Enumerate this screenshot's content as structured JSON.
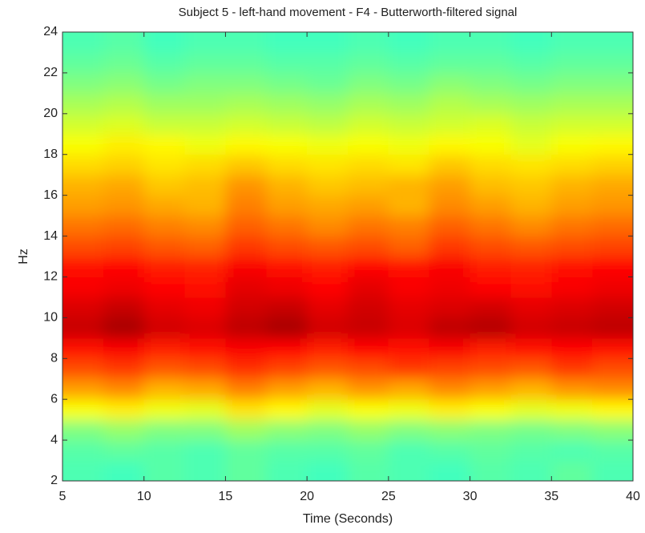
{
  "chart_data": {
    "type": "heatmap",
    "title": "Subject 5 - left-hand movement - F4 - Butterworth-filtered signal",
    "x_label": "Time (Seconds)",
    "y_label": "Hz",
    "colormap": "jet",
    "x": [
      6.25,
      8.75,
      11.25,
      13.75,
      16.25,
      18.75,
      21.25,
      23.75,
      26.25,
      28.75,
      31.25,
      33.75,
      36.25,
      38.75
    ],
    "y": [
      2.5,
      3.5,
      4.5,
      5.5,
      6.5,
      7.5,
      8.5,
      9.5,
      10.5,
      11.5,
      12.5,
      13.5,
      14.5,
      15.5,
      16.5,
      17.5,
      18.5,
      19.5,
      20.5,
      21.5,
      22.5,
      23.5
    ],
    "z": [
      [
        0.45,
        0.44,
        0.46,
        0.45,
        0.47,
        0.45,
        0.44,
        0.46,
        0.45,
        0.44,
        0.46,
        0.45,
        0.47,
        0.45
      ],
      [
        0.46,
        0.47,
        0.46,
        0.45,
        0.47,
        0.46,
        0.46,
        0.47,
        0.45,
        0.46,
        0.47,
        0.46,
        0.45,
        0.46
      ],
      [
        0.5,
        0.52,
        0.5,
        0.5,
        0.53,
        0.51,
        0.5,
        0.52,
        0.5,
        0.51,
        0.5,
        0.49,
        0.5,
        0.51
      ],
      [
        0.62,
        0.64,
        0.61,
        0.6,
        0.65,
        0.63,
        0.6,
        0.62,
        0.61,
        0.64,
        0.62,
        0.6,
        0.61,
        0.63
      ],
      [
        0.72,
        0.74,
        0.7,
        0.71,
        0.75,
        0.72,
        0.7,
        0.73,
        0.71,
        0.74,
        0.72,
        0.7,
        0.73,
        0.74
      ],
      [
        0.8,
        0.82,
        0.79,
        0.8,
        0.83,
        0.81,
        0.79,
        0.8,
        0.82,
        0.81,
        0.8,
        0.79,
        0.82,
        0.8
      ],
      [
        0.86,
        0.88,
        0.85,
        0.86,
        0.88,
        0.87,
        0.85,
        0.87,
        0.86,
        0.88,
        0.85,
        0.86,
        0.87,
        0.86
      ],
      [
        0.93,
        0.96,
        0.92,
        0.91,
        0.94,
        0.96,
        0.92,
        0.93,
        0.91,
        0.94,
        0.95,
        0.92,
        0.93,
        0.94
      ],
      [
        0.91,
        0.93,
        0.9,
        0.89,
        0.92,
        0.93,
        0.9,
        0.92,
        0.9,
        0.91,
        0.92,
        0.9,
        0.91,
        0.92
      ],
      [
        0.88,
        0.89,
        0.87,
        0.86,
        0.9,
        0.89,
        0.87,
        0.9,
        0.88,
        0.89,
        0.87,
        0.86,
        0.88,
        0.89
      ],
      [
        0.86,
        0.87,
        0.85,
        0.84,
        0.88,
        0.86,
        0.85,
        0.87,
        0.86,
        0.88,
        0.85,
        0.84,
        0.86,
        0.87
      ],
      [
        0.8,
        0.81,
        0.79,
        0.78,
        0.82,
        0.8,
        0.79,
        0.8,
        0.78,
        0.82,
        0.8,
        0.79,
        0.8,
        0.81
      ],
      [
        0.76,
        0.77,
        0.75,
        0.74,
        0.78,
        0.76,
        0.74,
        0.76,
        0.75,
        0.78,
        0.76,
        0.74,
        0.76,
        0.77
      ],
      [
        0.72,
        0.73,
        0.71,
        0.7,
        0.75,
        0.72,
        0.71,
        0.72,
        0.7,
        0.74,
        0.72,
        0.7,
        0.72,
        0.73
      ],
      [
        0.7,
        0.71,
        0.68,
        0.69,
        0.73,
        0.7,
        0.68,
        0.69,
        0.7,
        0.72,
        0.69,
        0.68,
        0.7,
        0.71
      ],
      [
        0.66,
        0.67,
        0.65,
        0.66,
        0.68,
        0.66,
        0.65,
        0.66,
        0.65,
        0.68,
        0.66,
        0.65,
        0.66,
        0.67
      ],
      [
        0.62,
        0.64,
        0.63,
        0.61,
        0.63,
        0.62,
        0.61,
        0.62,
        0.61,
        0.63,
        0.62,
        0.6,
        0.62,
        0.63
      ],
      [
        0.58,
        0.59,
        0.57,
        0.57,
        0.58,
        0.57,
        0.56,
        0.58,
        0.57,
        0.58,
        0.59,
        0.57,
        0.58,
        0.58
      ],
      [
        0.54,
        0.55,
        0.53,
        0.53,
        0.54,
        0.53,
        0.52,
        0.54,
        0.53,
        0.55,
        0.54,
        0.53,
        0.54,
        0.54
      ],
      [
        0.5,
        0.51,
        0.49,
        0.5,
        0.5,
        0.49,
        0.48,
        0.5,
        0.49,
        0.51,
        0.5,
        0.49,
        0.5,
        0.5
      ],
      [
        0.47,
        0.48,
        0.46,
        0.47,
        0.47,
        0.46,
        0.46,
        0.47,
        0.46,
        0.47,
        0.47,
        0.46,
        0.47,
        0.47
      ],
      [
        0.45,
        0.46,
        0.44,
        0.45,
        0.45,
        0.44,
        0.44,
        0.45,
        0.44,
        0.45,
        0.45,
        0.44,
        0.45,
        0.45
      ]
    ],
    "xlim": [
      5,
      40
    ],
    "ylim": [
      2,
      24
    ],
    "xticks": [
      5,
      10,
      15,
      20,
      25,
      30,
      35,
      40
    ],
    "yticks": [
      2,
      4,
      6,
      8,
      10,
      12,
      14,
      16,
      18,
      20,
      22,
      24
    ]
  }
}
